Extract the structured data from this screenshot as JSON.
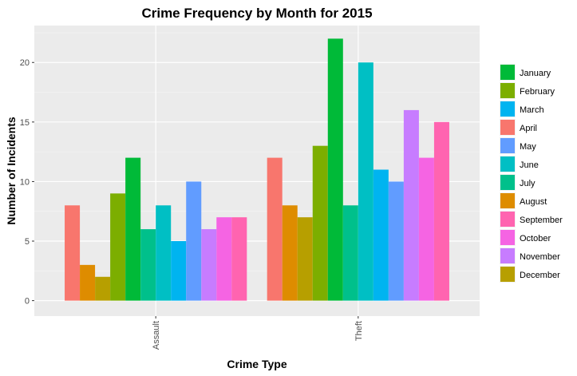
{
  "chart_data": {
    "type": "bar",
    "title": "Crime Frequency by Month for 2015",
    "xlabel": "Crime Type",
    "ylabel": "Number of Incidents",
    "categories": [
      "Assault",
      "Theft"
    ],
    "ylim": [
      -1.3,
      23.1
    ],
    "yticks": [
      0,
      5,
      10,
      15,
      20
    ],
    "grid": true,
    "legend_position": "right",
    "series": [
      {
        "name": "April",
        "color": "#F8766D",
        "values": [
          8,
          12
        ]
      },
      {
        "name": "August",
        "color": "#DE8C00",
        "values": [
          3,
          8
        ]
      },
      {
        "name": "December",
        "color": "#B79F00",
        "values": [
          2,
          7
        ]
      },
      {
        "name": "February",
        "color": "#7CAE00",
        "values": [
          9,
          13
        ]
      },
      {
        "name": "January",
        "color": "#00BA38",
        "values": [
          12,
          22
        ]
      },
      {
        "name": "July",
        "color": "#00C08B",
        "values": [
          6,
          8
        ]
      },
      {
        "name": "June",
        "color": "#00BFC4",
        "values": [
          8,
          20
        ]
      },
      {
        "name": "March",
        "color": "#00B4F0",
        "values": [
          5,
          11
        ]
      },
      {
        "name": "May",
        "color": "#619CFF",
        "values": [
          10,
          10
        ]
      },
      {
        "name": "November",
        "color": "#C77CFF",
        "values": [
          6,
          16
        ]
      },
      {
        "name": "October",
        "color": "#F564E3",
        "values": [
          7,
          12
        ]
      },
      {
        "name": "September",
        "color": "#FF64B0",
        "values": [
          7,
          15
        ]
      }
    ],
    "legend_order": [
      "January",
      "February",
      "March",
      "April",
      "May",
      "June",
      "July",
      "August",
      "September",
      "October",
      "November",
      "December"
    ]
  }
}
